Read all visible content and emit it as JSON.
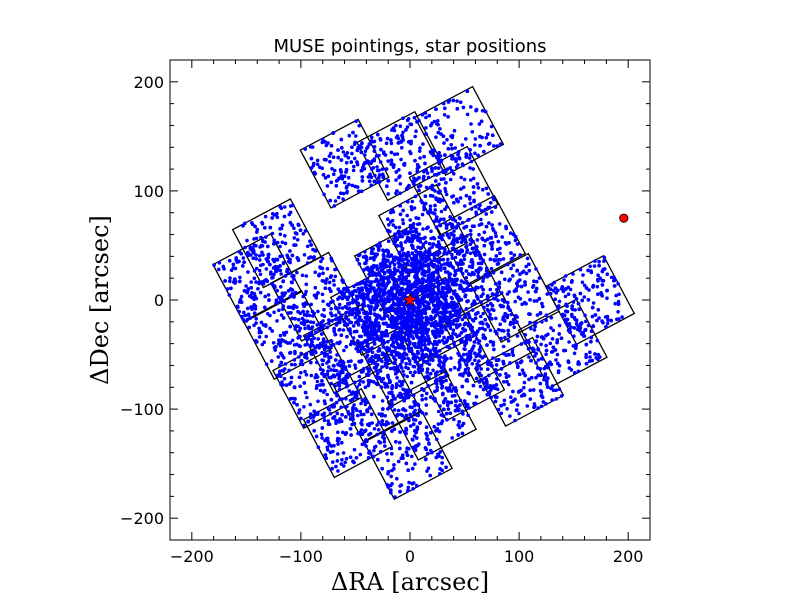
{
  "chart_data": {
    "type": "scatter",
    "title": "MUSE pointings, star positions",
    "xlabel": "ΔRA [arcsec]",
    "ylabel": "ΔDec [arcsec]",
    "xlim": [
      -220,
      220
    ],
    "ylim": [
      -220,
      220
    ],
    "xticks": [
      -200,
      -100,
      0,
      100,
      200
    ],
    "yticks": [
      -200,
      -100,
      0,
      100,
      200
    ],
    "xtick_labels": [
      "−200",
      "−100",
      "0",
      "100",
      "200"
    ],
    "ytick_labels": [
      "−200",
      "−100",
      "0",
      "100",
      "200"
    ],
    "grid": false,
    "legend": "none",
    "fov_rotation_deg": 28,
    "pointing_size_arcsec": 60,
    "pointings": [
      [
        -140,
        20
      ],
      [
        -122,
        52
      ],
      [
        -112,
        -32
      ],
      [
        -87,
        3
      ],
      [
        -85,
        -77
      ],
      [
        -57,
        -45
      ],
      [
        -32,
        -10
      ],
      [
        -10,
        28
      ],
      [
        12,
        65
      ],
      [
        40,
        100
      ],
      [
        -57,
        -122
      ],
      [
        -30,
        -90
      ],
      [
        -5,
        -57
      ],
      [
        20,
        -20
      ],
      [
        42,
        20
      ],
      [
        65,
        55
      ],
      [
        -2,
        -142
      ],
      [
        20,
        -106
      ],
      [
        46,
        -70
      ],
      [
        72,
        -35
      ],
      [
        96,
        2
      ],
      [
        -60,
        125
      ],
      [
        -8,
        132
      ],
      [
        45,
        155
      ],
      [
        100,
        -75
      ],
      [
        140,
        -40
      ],
      [
        165,
        0
      ]
    ],
    "stars": {
      "marker": "dot",
      "color": "#0000ff",
      "count_rendered": 6000,
      "central_concentration_scale_arcsec": 32
    },
    "center_star": {
      "x": 0,
      "y": 0,
      "marker": "star",
      "color": "#ff0000"
    },
    "offset_source": {
      "x": 196,
      "y": 75,
      "marker": "circle",
      "color": "#ff0000"
    }
  }
}
